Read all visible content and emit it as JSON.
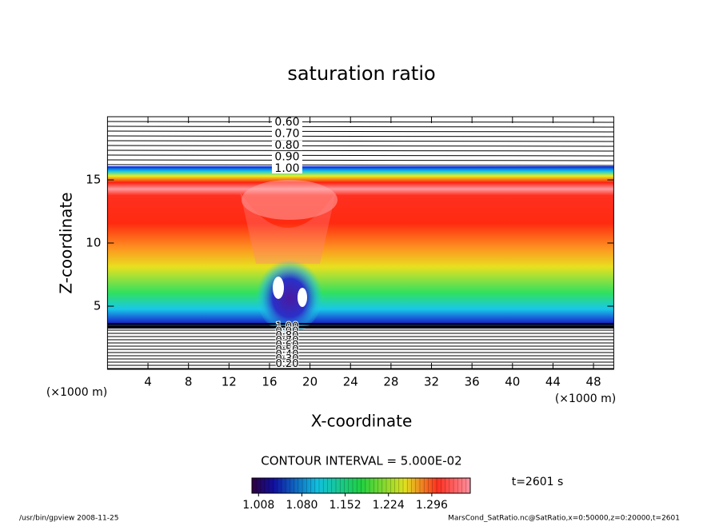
{
  "chart_data": {
    "type": "contour",
    "title": "saturation ratio",
    "xlabel": "X-coordinate",
    "ylabel": "Z-coordinate",
    "xunit": "(×1000 m)",
    "yunit": "(×1000 m)",
    "xlim": [
      0,
      50
    ],
    "ylim": [
      0,
      20
    ],
    "xticks": [
      4,
      8,
      12,
      16,
      20,
      24,
      28,
      32,
      36,
      40,
      44,
      48
    ],
    "yticks": [
      5,
      10,
      15
    ],
    "contour_labels_top": [
      "0.60",
      "0.70",
      "0.80",
      "0.90",
      "1.00"
    ],
    "contour_labels_bottom": [
      "1.00",
      "0.90",
      "0.80",
      "0.70",
      "0.60",
      "0.50",
      "0.40",
      "0.30",
      "0.20"
    ],
    "contour_interval": "CONTOUR INTERVAL = 5.000E-02",
    "time_label": "t=2601 s",
    "colorbar": {
      "lim": [
        0.997,
        1.36
      ],
      "ticks": [
        {
          "value": 1.008,
          "label": "1.008"
        },
        {
          "value": 1.08,
          "label": "1.080"
        },
        {
          "value": 1.152,
          "label": "1.152"
        },
        {
          "value": 1.224,
          "label": "1.224"
        },
        {
          "value": 1.296,
          "label": "1.296"
        }
      ]
    },
    "footer_left": "/usr/bin/gpview   2008-11-25",
    "footer_right": "MarsCond_SatRatio.nc@SatRatio,x=0:50000,z=0:20000,t=2601"
  }
}
